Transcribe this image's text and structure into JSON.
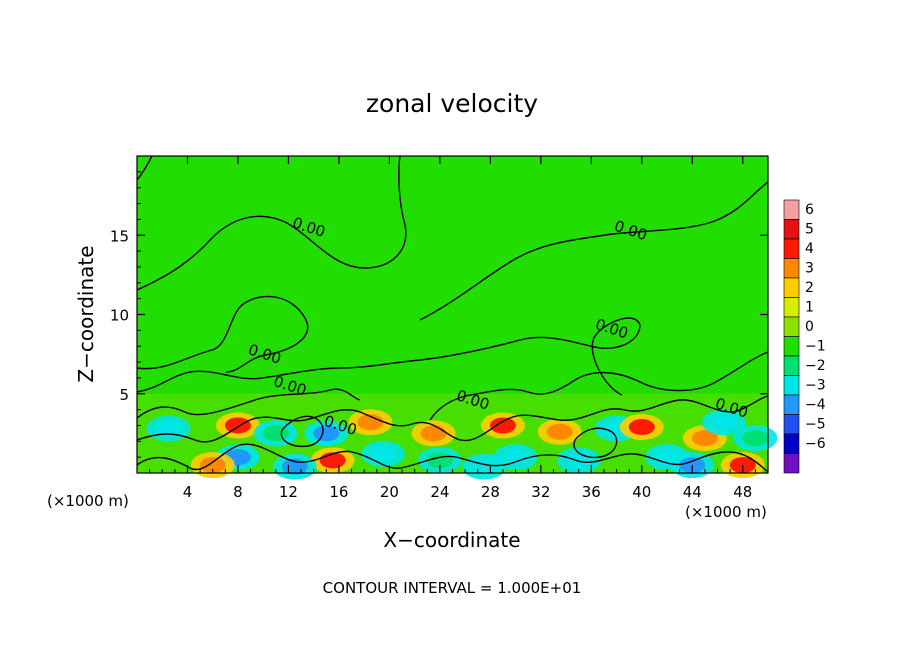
{
  "chart_data": {
    "type": "heatmap",
    "title": "zonal velocity",
    "xlabel": "X−coordinate",
    "ylabel": "Z−coordinate",
    "x_unit_label": "(×1000 m)",
    "x_unit_label_right": "(×1000 m)",
    "xlim": [
      0,
      50
    ],
    "ylim": [
      0,
      20
    ],
    "x_ticks": [
      4,
      8,
      12,
      16,
      20,
      24,
      28,
      32,
      36,
      40,
      44,
      48
    ],
    "y_ticks": [
      5,
      10,
      15
    ],
    "footer": "CONTOUR INTERVAL = 1.000E+01",
    "contour_labels": [
      {
        "text": "0.00",
        "x": 13.5,
        "y": 15.2
      },
      {
        "text": "0.00",
        "x": 39.0,
        "y": 15.0
      },
      {
        "text": "0.00",
        "x": 10.0,
        "y": 7.2
      },
      {
        "text": "0.00",
        "x": 37.5,
        "y": 8.8
      },
      {
        "text": "0.00",
        "x": 12.0,
        "y": 5.2
      },
      {
        "text": "0.00",
        "x": 26.5,
        "y": 4.3
      },
      {
        "text": "0.00",
        "x": 16.0,
        "y": 2.7
      },
      {
        "text": "0.00",
        "x": 47.0,
        "y": 3.8
      }
    ],
    "colorbar": {
      "levels": [
        6,
        5,
        4,
        3,
        2,
        1,
        0,
        -1,
        -2,
        -3,
        -4,
        -5,
        -6
      ],
      "colors": [
        "#f5a0a0",
        "#e81010",
        "#ff1a00",
        "#ff8800",
        "#ffcc00",
        "#d8ee00",
        "#8ee000",
        "#22dd00",
        "#00e070",
        "#00e6e6",
        "#2099ff",
        "#2050ee",
        "#0000cc",
        "#7010c0"
      ]
    },
    "cells": [
      {
        "x": 2.5,
        "y": 2.8,
        "v": -3
      },
      {
        "x": 8.0,
        "y": 3.0,
        "v": 4
      },
      {
        "x": 8.0,
        "y": 1.0,
        "v": -4
      },
      {
        "x": 11.0,
        "y": 2.5,
        "v": -2
      },
      {
        "x": 15.0,
        "y": 2.5,
        "v": -4
      },
      {
        "x": 15.5,
        "y": 0.8,
        "v": 4
      },
      {
        "x": 18.5,
        "y": 3.2,
        "v": 3
      },
      {
        "x": 19.5,
        "y": 1.2,
        "v": -3
      },
      {
        "x": 23.5,
        "y": 2.5,
        "v": 3
      },
      {
        "x": 24.0,
        "y": 0.8,
        "v": -2
      },
      {
        "x": 29.0,
        "y": 3.0,
        "v": 4
      },
      {
        "x": 30.0,
        "y": 1.0,
        "v": -3
      },
      {
        "x": 33.5,
        "y": 2.6,
        "v": 3
      },
      {
        "x": 35.0,
        "y": 0.8,
        "v": -3
      },
      {
        "x": 38.0,
        "y": 2.8,
        "v": -3
      },
      {
        "x": 40.0,
        "y": 2.9,
        "v": 4
      },
      {
        "x": 42.0,
        "y": 1.0,
        "v": -3
      },
      {
        "x": 45.0,
        "y": 2.2,
        "v": 3
      },
      {
        "x": 46.5,
        "y": 3.2,
        "v": -3
      },
      {
        "x": 48.0,
        "y": 0.5,
        "v": 4
      },
      {
        "x": 49.0,
        "y": 2.2,
        "v": -2
      },
      {
        "x": 6.0,
        "y": 0.5,
        "v": 3
      },
      {
        "x": 12.5,
        "y": 0.4,
        "v": -4
      },
      {
        "x": 27.5,
        "y": 0.4,
        "v": -3
      },
      {
        "x": 44.0,
        "y": 0.5,
        "v": -4
      }
    ]
  }
}
